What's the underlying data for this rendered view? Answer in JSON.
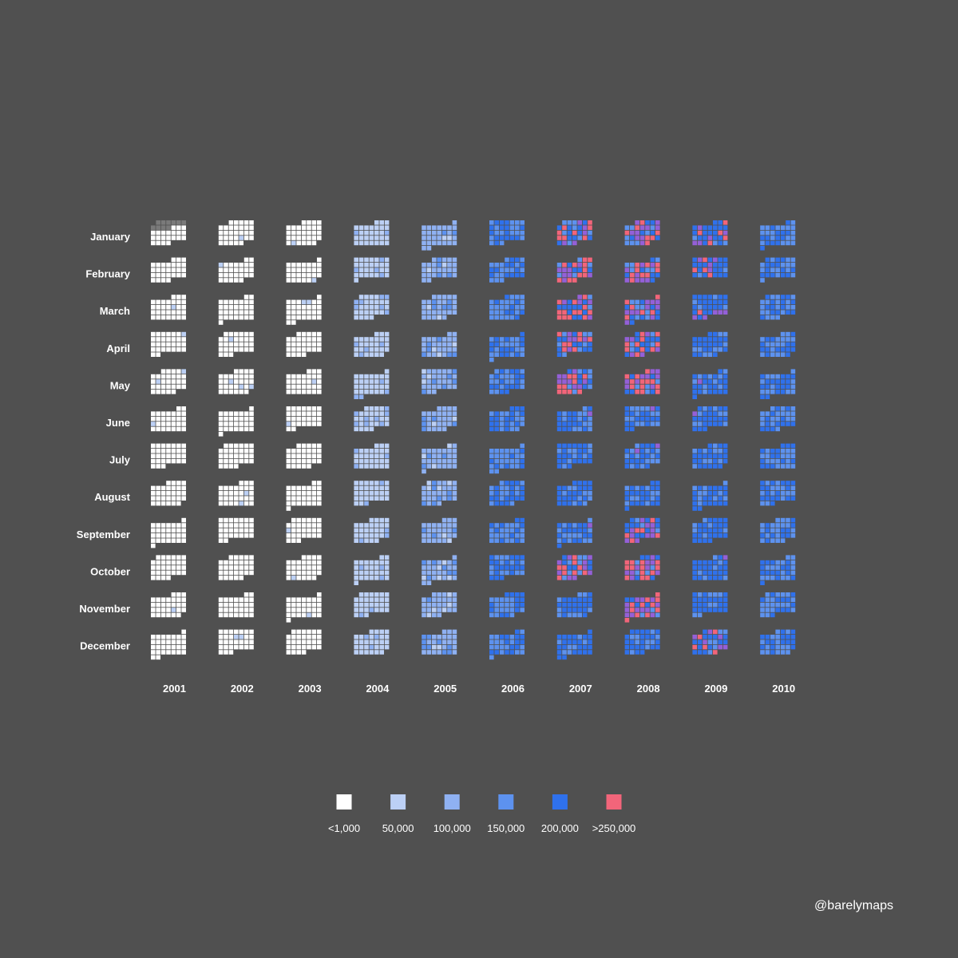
{
  "chart_data": {
    "type": "heatmap",
    "title": "",
    "xlabel": "",
    "ylabel": "",
    "years": [
      "2001",
      "2002",
      "2003",
      "2004",
      "2005",
      "2006",
      "2007",
      "2008",
      "2009",
      "2010"
    ],
    "months": [
      "January",
      "February",
      "March",
      "April",
      "May",
      "June",
      "July",
      "August",
      "September",
      "October",
      "November",
      "December"
    ],
    "week_start": "Sunday",
    "legend": {
      "placement": "bottom-center",
      "items": [
        {
          "label": "<1,000",
          "color": "#ffffff"
        },
        {
          "label": "50,000",
          "color": "#bcd0f5"
        },
        {
          "label": "100,000",
          "color": "#8fb1f2"
        },
        {
          "label": "150,000",
          "color": "#5d92ef"
        },
        {
          "label": "200,000",
          "color": "#2f71ec"
        },
        {
          "label": ">250,000",
          "color": "#f2657a"
        }
      ]
    },
    "no_data_color": "#7a7a7a",
    "no_data_period": {
      "year": "2001",
      "month": "January",
      "days": [
        1,
        10
      ]
    },
    "yearly_typical_level": [
      0,
      0,
      0,
      1,
      2,
      3,
      4,
      4,
      4,
      3
    ],
    "peak_months": [
      {
        "year": "2007",
        "months": [
          "January",
          "February",
          "March",
          "April",
          "May",
          "October"
        ],
        "level": "high"
      },
      {
        "year": "2008",
        "months": [
          "January",
          "February",
          "March",
          "April",
          "May",
          "September",
          "October",
          "November"
        ],
        "level": "high"
      },
      {
        "year": "2009",
        "months": [
          "January",
          "February",
          "March",
          "December"
        ],
        "level": "elevated"
      }
    ]
  },
  "credit": "@barelymaps"
}
